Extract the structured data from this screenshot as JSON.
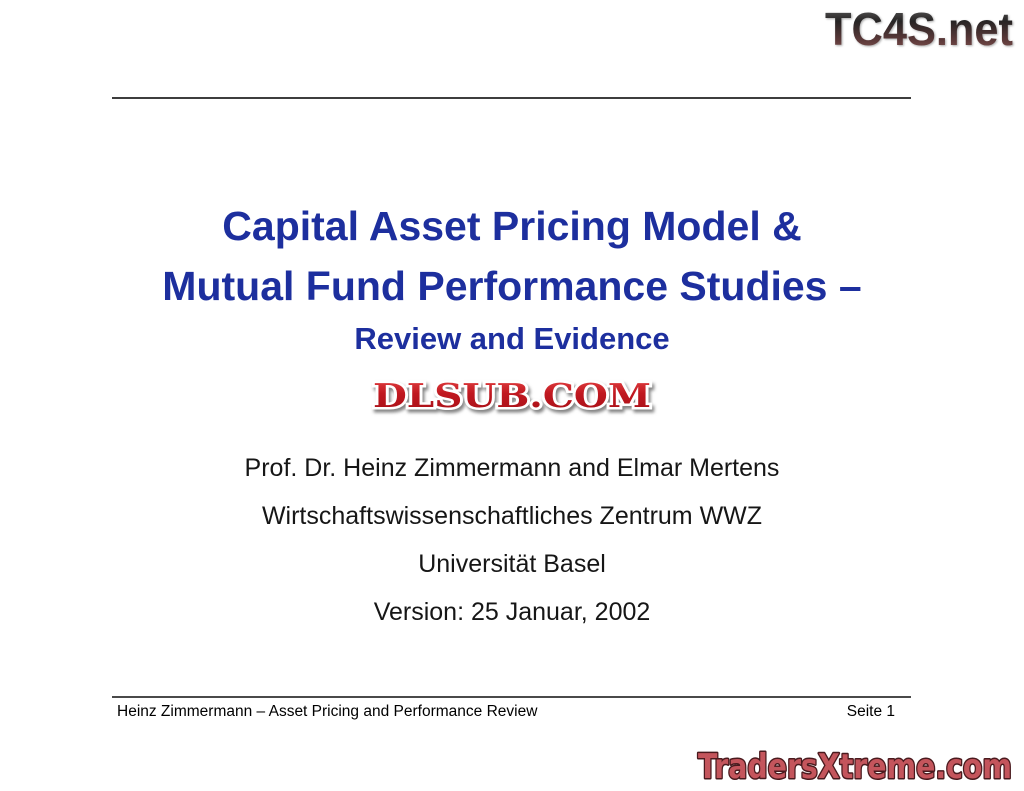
{
  "slide": {
    "title": {
      "line1": "Capital Asset Pricing Model &",
      "line2": "Mutual Fund Performance Studies –",
      "line3": "Review and Evidence"
    },
    "authors": [
      "Prof. Dr. Heinz Zimmermann and Elmar Mertens",
      "Wirtschaftswissenschaftliches Zentrum WWZ",
      "Universität Basel",
      "Version: 25 Januar, 2002"
    ],
    "footer": {
      "left": "Heinz Zimmermann – Asset Pricing and Performance Review",
      "page": "Seite 1"
    }
  },
  "watermarks": {
    "top_right": "TC4S.net",
    "center": "DLSUB.COM",
    "bottom_right": "TradersXtreme.com"
  },
  "colors": {
    "title_blue": "#1d2f9e",
    "dlsub_red": "#c01820",
    "traders_red": "#c4555c",
    "traders_outline": "#4a1a1e",
    "tc4s_dark": "#262424",
    "tc4s_red_bottom": "#8a5a58",
    "rule_gray": "#3d3d3d"
  }
}
